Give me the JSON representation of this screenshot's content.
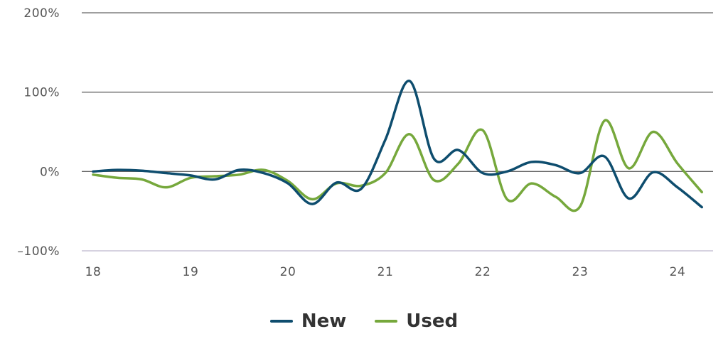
{
  "chart_data": {
    "type": "line",
    "title": "",
    "xlabel": "",
    "ylabel": "",
    "x_ticks": [
      "18",
      "19",
      "20",
      "21",
      "22",
      "23",
      "24"
    ],
    "y_ticks": [
      "200%",
      "100%",
      "0%",
      "–100%"
    ],
    "ylim": [
      -100,
      200
    ],
    "xlim": [
      17.9,
      24.4
    ],
    "grid": true,
    "legend_position": "bottom-center",
    "series": [
      {
        "name": "New",
        "color": "#0e4d6e",
        "x": [
          18.0,
          18.25,
          18.5,
          18.75,
          19.0,
          19.25,
          19.5,
          19.75,
          20.0,
          20.25,
          20.5,
          20.75,
          21.0,
          21.25,
          21.5,
          21.75,
          22.0,
          22.25,
          22.5,
          22.75,
          23.0,
          23.25,
          23.5,
          23.75,
          24.0,
          24.25
        ],
        "y": [
          0,
          2,
          1,
          -2,
          -5,
          -10,
          2,
          -2,
          -15,
          -41,
          -14,
          -22,
          40,
          114,
          16,
          27,
          -2,
          0,
          12,
          8,
          -2,
          19,
          -34,
          -1,
          -20,
          -45
        ]
      },
      {
        "name": "Used",
        "color": "#76a83c",
        "x": [
          18.0,
          18.25,
          18.5,
          18.75,
          19.0,
          19.25,
          19.5,
          19.75,
          20.0,
          20.25,
          20.5,
          20.75,
          21.0,
          21.25,
          21.5,
          21.75,
          22.0,
          22.25,
          22.5,
          22.75,
          23.0,
          23.25,
          23.5,
          23.75,
          24.0,
          24.25
        ],
        "y": [
          -4,
          -8,
          -10,
          -20,
          -8,
          -6,
          -4,
          2,
          -12,
          -35,
          -15,
          -18,
          -2,
          47,
          -11,
          10,
          52,
          -35,
          -15,
          -32,
          -44,
          64,
          4,
          50,
          10,
          -26
        ]
      }
    ]
  }
}
